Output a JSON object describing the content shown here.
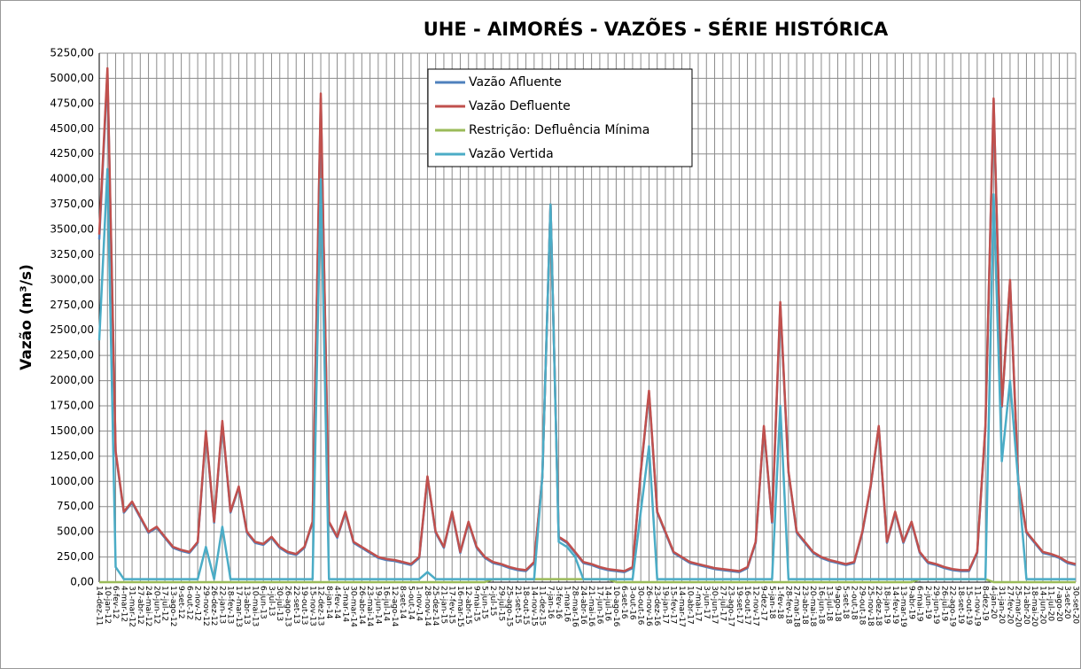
{
  "chart_data": {
    "type": "line",
    "title": "UHE - AIMORÉS - VAZÕES - SÉRIE HISTÓRICA",
    "y_label": "Vazão (m³/s)",
    "categories": [
      "14-dez-11",
      "10-jan-12",
      "6-fev-12",
      "4-mar-12",
      "31-mar-12",
      "27-abr-12",
      "24-mai-12",
      "20-jun-12",
      "17-jul-12",
      "13-ago-12",
      "9-set-12",
      "6-out-12",
      "2-nov-12",
      "29-nov-12",
      "26-dez-12",
      "22-jan-13",
      "18-fev-13",
      "17-mar-13",
      "13-abr-13",
      "10-mai-13",
      "6-jun-13",
      "3-jul-13",
      "30-jul-13",
      "26-ago-13",
      "22-set-13",
      "19-out-13",
      "15-nov-13",
      "12-dez-13",
      "8-jan-14",
      "4-fev-14",
      "3-mar-14",
      "30-mar-14",
      "26-abr-14",
      "23-mai-14",
      "19-jun-14",
      "16-jul-14",
      "12-ago-14",
      "8-set-14",
      "5-out-14",
      "1-nov-14",
      "28-nov-14",
      "25-dez-14",
      "21-jan-15",
      "17-fev-15",
      "16-mar-15",
      "12-abr-15",
      "9-mai-15",
      "5-jun-15",
      "2-jul-15",
      "29-jul-15",
      "25-ago-15",
      "21-set-15",
      "18-out-15",
      "14-nov-15",
      "11-dez-15",
      "7-jan-16",
      "3-fev-16",
      "1-mar-16",
      "28-mar-16",
      "24-abr-16",
      "21-mai-16",
      "17-jun-16",
      "14-jul-16",
      "10-ago-16",
      "6-set-16",
      "3-out-16",
      "30-out-16",
      "26-nov-16",
      "23-dez-16",
      "19-jan-17",
      "15-fev-17",
      "14-mar-17",
      "10-abr-17",
      "7-mai-17",
      "3-jun-17",
      "30-jun-17",
      "27-jul-17",
      "23-ago-17",
      "19-set-17",
      "16-out-17",
      "12-nov-17",
      "9-dez-17",
      "5-jan-18",
      "1-fev-18",
      "28-fev-18",
      "27-mar-18",
      "23-abr-18",
      "20-mai-18",
      "16-jun-18",
      "13-jul-18",
      "9-ago-18",
      "5-set-18",
      "2-out-18",
      "29-out-18",
      "25-nov-18",
      "22-dez-18",
      "18-jan-19",
      "14-fev-19",
      "13-mar-19",
      "9-abr-19",
      "6-mai-19",
      "2-jun-19",
      "29-jun-19",
      "26-jul-19",
      "22-ago-19",
      "18-set-19",
      "15-out-19",
      "11-nov-19",
      "8-dez-19",
      "4-jan-20",
      "31-jan-20",
      "27-fev-20",
      "25-mar-20",
      "21-abr-20",
      "18-mai-20",
      "14-jun-20",
      "11-jul-20",
      "7-ago-20",
      "3-set-20",
      "30-set-20"
    ],
    "series": [
      {
        "name": "Vazão Afluente",
        "color": "#4f81bd",
        "values": [
          3400,
          5050,
          1280,
          690,
          790,
          640,
          490,
          540,
          440,
          340,
          310,
          290,
          390,
          1480,
          590,
          1580,
          690,
          940,
          490,
          390,
          370,
          440,
          340,
          290,
          270,
          340,
          590,
          4800,
          590,
          440,
          690,
          390,
          340,
          290,
          240,
          220,
          210,
          190,
          170,
          240,
          1040,
          490,
          340,
          690,
          290,
          590,
          340,
          240,
          190,
          170,
          140,
          120,
          110,
          190,
          1040,
          3740,
          440,
          390,
          290,
          190,
          170,
          140,
          120,
          110,
          100,
          140,
          1090,
          1880,
          690,
          490,
          290,
          240,
          190,
          170,
          150,
          130,
          120,
          110,
          100,
          140,
          390,
          1540,
          590,
          2750,
          1090,
          490,
          390,
          290,
          240,
          210,
          190,
          170,
          190,
          490,
          940,
          1540,
          390,
          690,
          390,
          590,
          290,
          190,
          170,
          140,
          120,
          110,
          110,
          290,
          1540,
          4780,
          1740,
          2980,
          990,
          490,
          390,
          290,
          270,
          240,
          190,
          170
        ]
      },
      {
        "name": "Vazão Defluente",
        "color": "#c0504d",
        "values": [
          3450,
          5100,
          1300,
          700,
          800,
          650,
          500,
          550,
          450,
          350,
          320,
          300,
          400,
          1500,
          600,
          1600,
          700,
          950,
          500,
          400,
          380,
          450,
          350,
          300,
          280,
          350,
          600,
          4850,
          600,
          450,
          700,
          400,
          350,
          300,
          250,
          230,
          220,
          200,
          180,
          250,
          1050,
          500,
          350,
          700,
          300,
          600,
          350,
          250,
          200,
          180,
          150,
          130,
          120,
          200,
          1050,
          3750,
          450,
          400,
          300,
          200,
          180,
          150,
          130,
          120,
          110,
          150,
          1100,
          1900,
          700,
          500,
          300,
          250,
          200,
          180,
          160,
          140,
          130,
          120,
          110,
          150,
          400,
          1550,
          600,
          2780,
          1100,
          500,
          400,
          300,
          250,
          220,
          200,
          180,
          200,
          500,
          950,
          1550,
          400,
          700,
          400,
          600,
          300,
          200,
          180,
          150,
          130,
          120,
          120,
          300,
          1550,
          4800,
          1750,
          3000,
          1000,
          500,
          400,
          300,
          280,
          250,
          200,
          180
        ]
      },
      {
        "name": "Restrição: Defluência Mínima",
        "color": "#9bbb59",
        "values": [
          0,
          0,
          0,
          0,
          0,
          0,
          0,
          0,
          0,
          0,
          0,
          0,
          0,
          0,
          0,
          0,
          0,
          0,
          0,
          0,
          0,
          0,
          0,
          0,
          0,
          0,
          0,
          0,
          0,
          0,
          0,
          0,
          0,
          0,
          0,
          0,
          0,
          0,
          0,
          0,
          0,
          0,
          0,
          0,
          0,
          0,
          0,
          0,
          30,
          30,
          30,
          30,
          30,
          30,
          30,
          30,
          30,
          30,
          30,
          30,
          30,
          30,
          30,
          0,
          0,
          0,
          0,
          0,
          0,
          0,
          0,
          0,
          0,
          0,
          0,
          0,
          0,
          0,
          0,
          0,
          0,
          0,
          0,
          0,
          0,
          0,
          0,
          0,
          0,
          0,
          0,
          0,
          0,
          0,
          0,
          0,
          0,
          0,
          0,
          0,
          30,
          30,
          30,
          30,
          30,
          30,
          30,
          30,
          30,
          0,
          0,
          0,
          0,
          0,
          0,
          0,
          0,
          0,
          0,
          0
        ]
      },
      {
        "name": "Vazão Vertida",
        "color": "#4bacc6",
        "values": [
          2400,
          4100,
          150,
          30,
          30,
          30,
          30,
          30,
          30,
          30,
          30,
          30,
          30,
          350,
          30,
          550,
          30,
          30,
          30,
          30,
          30,
          30,
          30,
          30,
          30,
          30,
          30,
          4000,
          30,
          30,
          30,
          30,
          30,
          30,
          30,
          30,
          30,
          30,
          30,
          30,
          100,
          30,
          30,
          30,
          30,
          30,
          30,
          30,
          30,
          30,
          30,
          30,
          30,
          30,
          1050,
          3750,
          400,
          350,
          250,
          30,
          30,
          30,
          30,
          30,
          30,
          30,
          700,
          1350,
          30,
          30,
          30,
          30,
          30,
          30,
          30,
          30,
          30,
          30,
          30,
          30,
          30,
          30,
          30,
          1750,
          30,
          30,
          30,
          30,
          30,
          30,
          30,
          30,
          30,
          30,
          30,
          30,
          30,
          30,
          30,
          30,
          30,
          30,
          30,
          30,
          30,
          30,
          30,
          30,
          30,
          3850,
          1200,
          2000,
          1000,
          30,
          30,
          30,
          30,
          30,
          30,
          30
        ]
      }
    ],
    "ylim": [
      0,
      5250
    ],
    "yticks": [
      {
        "value": 0,
        "label": "0,00"
      },
      {
        "value": 250,
        "label": "250,00"
      },
      {
        "value": 500,
        "label": "500,00"
      },
      {
        "value": 750,
        "label": "750,00"
      },
      {
        "value": 1000,
        "label": "1000,00"
      },
      {
        "value": 1250,
        "label": "1250,00"
      },
      {
        "value": 1500,
        "label": "1500,00"
      },
      {
        "value": 1750,
        "label": "1750,00"
      },
      {
        "value": 2000,
        "label": "2000,00"
      },
      {
        "value": 2250,
        "label": "2250,00"
      },
      {
        "value": 2500,
        "label": "2500,00"
      },
      {
        "value": 2750,
        "label": "2750,00"
      },
      {
        "value": 3000,
        "label": "3000,00"
      },
      {
        "value": 3250,
        "label": "3250,00"
      },
      {
        "value": 3500,
        "label": "3500,00"
      },
      {
        "value": 3750,
        "label": "3750,00"
      },
      {
        "value": 4000,
        "label": "4000,00"
      },
      {
        "value": 4250,
        "label": "4250,00"
      },
      {
        "value": 4500,
        "label": "4500,00"
      },
      {
        "value": 4750,
        "label": "4750,00"
      },
      {
        "value": 5000,
        "label": "5000,00"
      },
      {
        "value": 5250,
        "label": "5250,00"
      }
    ],
    "grid": true,
    "legend": "top-center"
  }
}
